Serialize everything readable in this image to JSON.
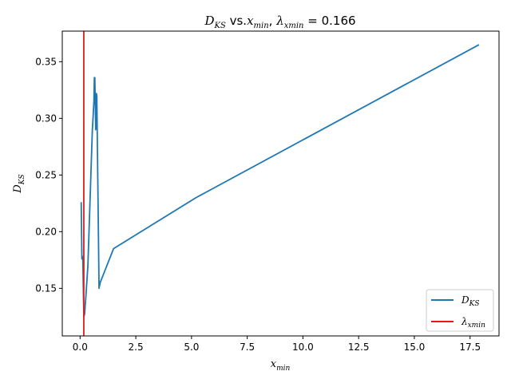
{
  "chart_data": {
    "type": "line",
    "title": {
      "left_symbol": "D",
      "left_sub": "KS",
      "middle": " vs.",
      "x_symbol": "x",
      "x_sub": "min",
      "comma": ", ",
      "lambda_symbol": "λ",
      "lambda_sub": "xmin",
      "value_text": " = 0.166"
    },
    "xlabel": {
      "symbol": "x",
      "sub": "min"
    },
    "ylabel": {
      "symbol": "D",
      "sub": "KS"
    },
    "xlim": [
      -0.8,
      18.8
    ],
    "ylim": [
      0.108,
      0.377
    ],
    "xticks": [
      0.0,
      2.5,
      5.0,
      7.5,
      10.0,
      12.5,
      15.0,
      17.5
    ],
    "xtick_labels": [
      "0.0",
      "2.5",
      "5.0",
      "7.5",
      "10.0",
      "12.5",
      "15.0",
      "17.5"
    ],
    "yticks": [
      0.15,
      0.2,
      0.25,
      0.3,
      0.35
    ],
    "ytick_labels": [
      "0.15",
      "0.20",
      "0.25",
      "0.30",
      "0.35"
    ],
    "grid": false,
    "legend_position": "lower-right",
    "series": [
      {
        "name_symbol": "D",
        "name_sub": "KS",
        "color": "#1f77b4",
        "kind": "line",
        "x": [
          0.05,
          0.08,
          0.12,
          0.166,
          0.2,
          0.25,
          0.3,
          0.35,
          0.4,
          0.45,
          0.5,
          0.55,
          0.58,
          0.62,
          0.64,
          0.66,
          0.7,
          0.73,
          0.75,
          0.85,
          0.9,
          1.5,
          5.2,
          17.9
        ],
        "y": [
          0.226,
          0.176,
          0.178,
          0.125,
          0.127,
          0.14,
          0.155,
          0.17,
          0.2,
          0.23,
          0.26,
          0.29,
          0.3,
          0.315,
          0.336,
          0.336,
          0.29,
          0.322,
          0.32,
          0.15,
          0.155,
          0.185,
          0.23,
          0.365
        ]
      },
      {
        "name_symbol": "λ",
        "name_sub": "xmin",
        "color": "#e31a1c",
        "kind": "vline",
        "x_value": 0.166
      }
    ]
  }
}
